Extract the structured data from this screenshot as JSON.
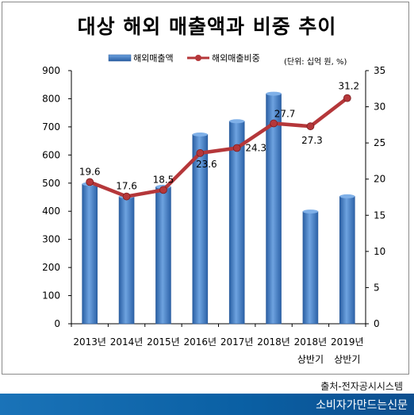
{
  "title": "대상 해외 매출액과 비중 추이",
  "source": "출처-전자공시시스템",
  "footer": "소비자가만드는신문",
  "chart_data": {
    "type": "bar+line",
    "title": "대상 해외 매출액과 비중 추이",
    "unit_note": "(단위: 십억 원, %)",
    "categories": [
      [
        "2013년"
      ],
      [
        "2014년"
      ],
      [
        "2015년"
      ],
      [
        "2016년"
      ],
      [
        "2017년"
      ],
      [
        "2018년"
      ],
      [
        "2018년",
        "상반기"
      ],
      [
        "2019년",
        "상반기"
      ]
    ],
    "series": [
      {
        "name": "해외매출액",
        "type": "bar",
        "axis": "left",
        "color": "#3f7fc9",
        "values": [
          497,
          452,
          487,
          673,
          720,
          818,
          399,
          453
        ]
      },
      {
        "name": "해외매출비중",
        "type": "line",
        "axis": "right",
        "color": "#b5373a",
        "values": [
          19.6,
          17.6,
          18.5,
          23.6,
          24.3,
          27.7,
          27.3,
          31.2
        ],
        "labels": [
          "19.6",
          "17.6",
          "18.5",
          "23.6",
          "24.3",
          "27.7",
          "27.3",
          "31.2"
        ]
      }
    ],
    "y_left": {
      "min": 0,
      "max": 900,
      "ticks": [
        "0",
        "100",
        "200",
        "300",
        "400",
        "500",
        "600",
        "700",
        "800",
        "900"
      ]
    },
    "y_right": {
      "min": 0,
      "max": 35,
      "ticks": [
        "0",
        "5",
        "10",
        "15",
        "20",
        "25",
        "30",
        "35"
      ]
    },
    "grid": false,
    "legend": "top-center"
  }
}
